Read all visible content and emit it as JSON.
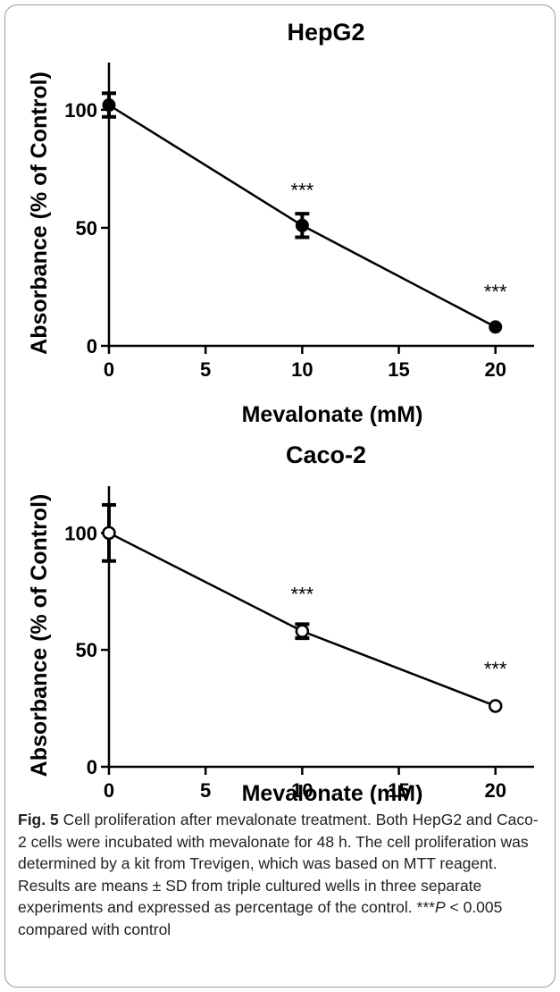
{
  "chart_data": [
    {
      "type": "line",
      "title": "HepG2",
      "xlabel": "Mevalonate (mM)",
      "ylabel": "Absorbance (% of Control)",
      "xlim": [
        0,
        22
      ],
      "ylim": [
        0,
        120
      ],
      "xticks": [
        0,
        5,
        10,
        15,
        20
      ],
      "yticks": [
        0,
        50,
        100
      ],
      "marker": "filled-circle",
      "x": [
        0,
        10,
        20
      ],
      "y": [
        102,
        51,
        8
      ],
      "error": [
        5,
        5,
        0.5
      ],
      "annotations": [
        {
          "x": 10,
          "y": 66,
          "text": "***"
        },
        {
          "x": 20,
          "y": 23,
          "text": "***"
        }
      ]
    },
    {
      "type": "line",
      "title": "Caco-2",
      "xlabel": "Mevalonate (mM)",
      "ylabel": "Absorbance (% of Control)",
      "xlim": [
        0,
        22
      ],
      "ylim": [
        0,
        120
      ],
      "xticks": [
        0,
        5,
        10,
        15,
        20
      ],
      "yticks": [
        0,
        50,
        100
      ],
      "marker": "open-circle",
      "x": [
        0,
        10,
        20
      ],
      "y": [
        100,
        58,
        26
      ],
      "error": [
        12,
        3,
        0.5
      ],
      "annotations": [
        {
          "x": 10,
          "y": 74,
          "text": "***"
        },
        {
          "x": 20,
          "y": 42,
          "text": "***"
        }
      ]
    }
  ],
  "caption": {
    "label": "Fig. 5",
    "text": " Cell proliferation after mevalonate treatment. Both HepG2 and Caco-2 cells were incubated with mevalonate for 48 h. The cell proliferation was determined by a kit from Trevigen, which was based on MTT reagent. Results are means ± SD from triple cultured wells in three separate experiments and expressed as percentage of the control. ",
    "significance": "***",
    "p_symbol": "P",
    "significance_text": " < 0.005 compared with control"
  }
}
